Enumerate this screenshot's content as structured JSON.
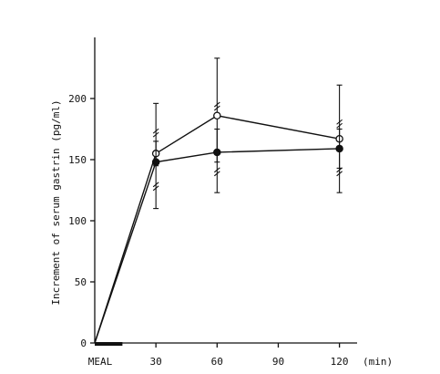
{
  "chart_data": {
    "type": "line",
    "title": "",
    "ylabel": "Increment of serum gastrin (pg/ml)",
    "xlabel": "",
    "x_unit_label": "(min)",
    "x_ticks": [
      {
        "value": 0,
        "label": "MEAL"
      },
      {
        "value": 30,
        "label": "30"
      },
      {
        "value": 60,
        "label": "60"
      },
      {
        "value": 90,
        "label": "90"
      },
      {
        "value": 120,
        "label": "120"
      }
    ],
    "y_ticks": [
      0,
      50,
      100,
      150,
      200
    ],
    "xlim": [
      0,
      130
    ],
    "ylim": [
      0,
      250
    ],
    "meal_bar": {
      "start": 0,
      "end": 10
    },
    "series": [
      {
        "marker": "open-circle",
        "x": [
          0,
          30,
          60,
          120
        ],
        "y": [
          0,
          155,
          186,
          167
        ],
        "err_low": [
          null,
          145,
          148,
          143
        ],
        "err_high": [
          null,
          196,
          233,
          211
        ]
      },
      {
        "marker": "filled-circle",
        "x": [
          0,
          30,
          60,
          120
        ],
        "y": [
          0,
          148,
          156,
          159
        ],
        "err_low": [
          null,
          110,
          123,
          123
        ],
        "err_high": [
          null,
          165,
          175,
          175
        ]
      }
    ]
  }
}
